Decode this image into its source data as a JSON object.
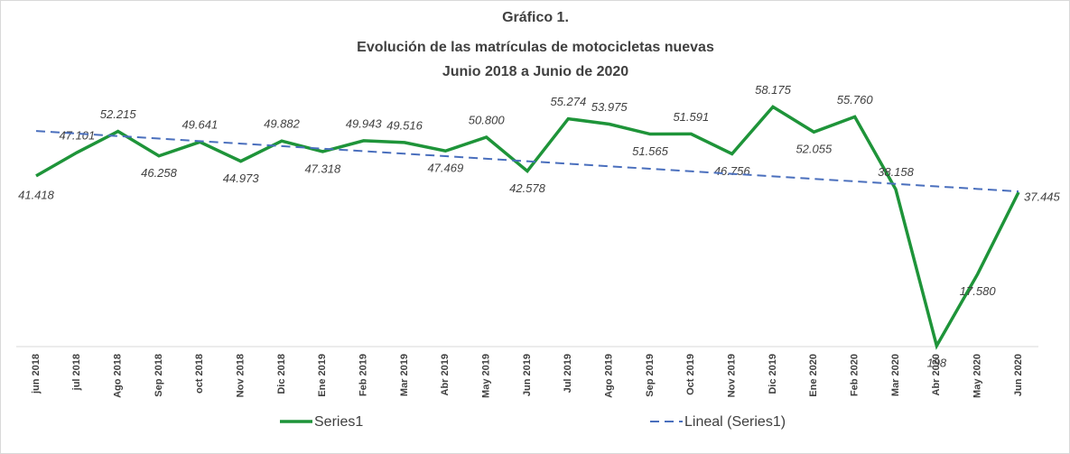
{
  "chart_data": {
    "type": "line",
    "title": [
      "Gráfico 1.",
      "Evolución de  las matrículas de motocicletas nuevas",
      "Junio 2018 a Junio de 2020"
    ],
    "categories": [
      "jun 2018",
      "jul 2018",
      "Ago 2018",
      "Sep 2018",
      "oct 2018",
      "Nov 2018",
      "Dic 2018",
      "Ene 2019",
      "Feb 2019",
      "Mar 2019",
      "Abr 2019",
      "May 2019",
      "Jun 2019",
      "Jul 2019",
      "Ago 2019",
      "Sep 2019",
      "Oct 2019",
      "Nov 2019",
      "Dic 2019",
      "Ene 2020",
      "Feb 2020",
      "Mar 2020",
      "Abr 2020",
      "May 2020",
      "Jun 2020"
    ],
    "series": [
      {
        "name": "Series1",
        "color": "#1e9439",
        "style": "solid",
        "values": [
          41418,
          47101,
          52215,
          46258,
          49641,
          44973,
          49882,
          47318,
          49943,
          49516,
          47469,
          50800,
          42578,
          55274,
          53975,
          51565,
          51591,
          46756,
          58175,
          52055,
          55760,
          38158,
          198,
          17580,
          37445
        ],
        "value_labels": [
          "41.418",
          "47.101",
          "52.215",
          "46.258",
          "49.641",
          "44.973",
          "49.882",
          "47.318",
          "49.943",
          "49.516",
          "47.469",
          "50.800",
          "42.578",
          "55.274",
          "53.975",
          "51.565",
          "51.591",
          "46.756",
          "58.175",
          "52.055",
          "55.760",
          "38.158",
          "198",
          "17.580",
          "37.445"
        ]
      },
      {
        "name": "Lineal (Series1)",
        "color": "#4a6fbd",
        "style": "dashed",
        "values": [
          52300,
          51689,
          51078,
          50468,
          49857,
          49246,
          48635,
          48024,
          47414,
          46803,
          46192,
          45581,
          44970,
          44360,
          43749,
          43138,
          42527,
          41916,
          41306,
          40695,
          40084,
          39473,
          38862,
          38252,
          37641
        ]
      }
    ],
    "ylim": [
      0,
      60000
    ],
    "legend": "bottom"
  }
}
